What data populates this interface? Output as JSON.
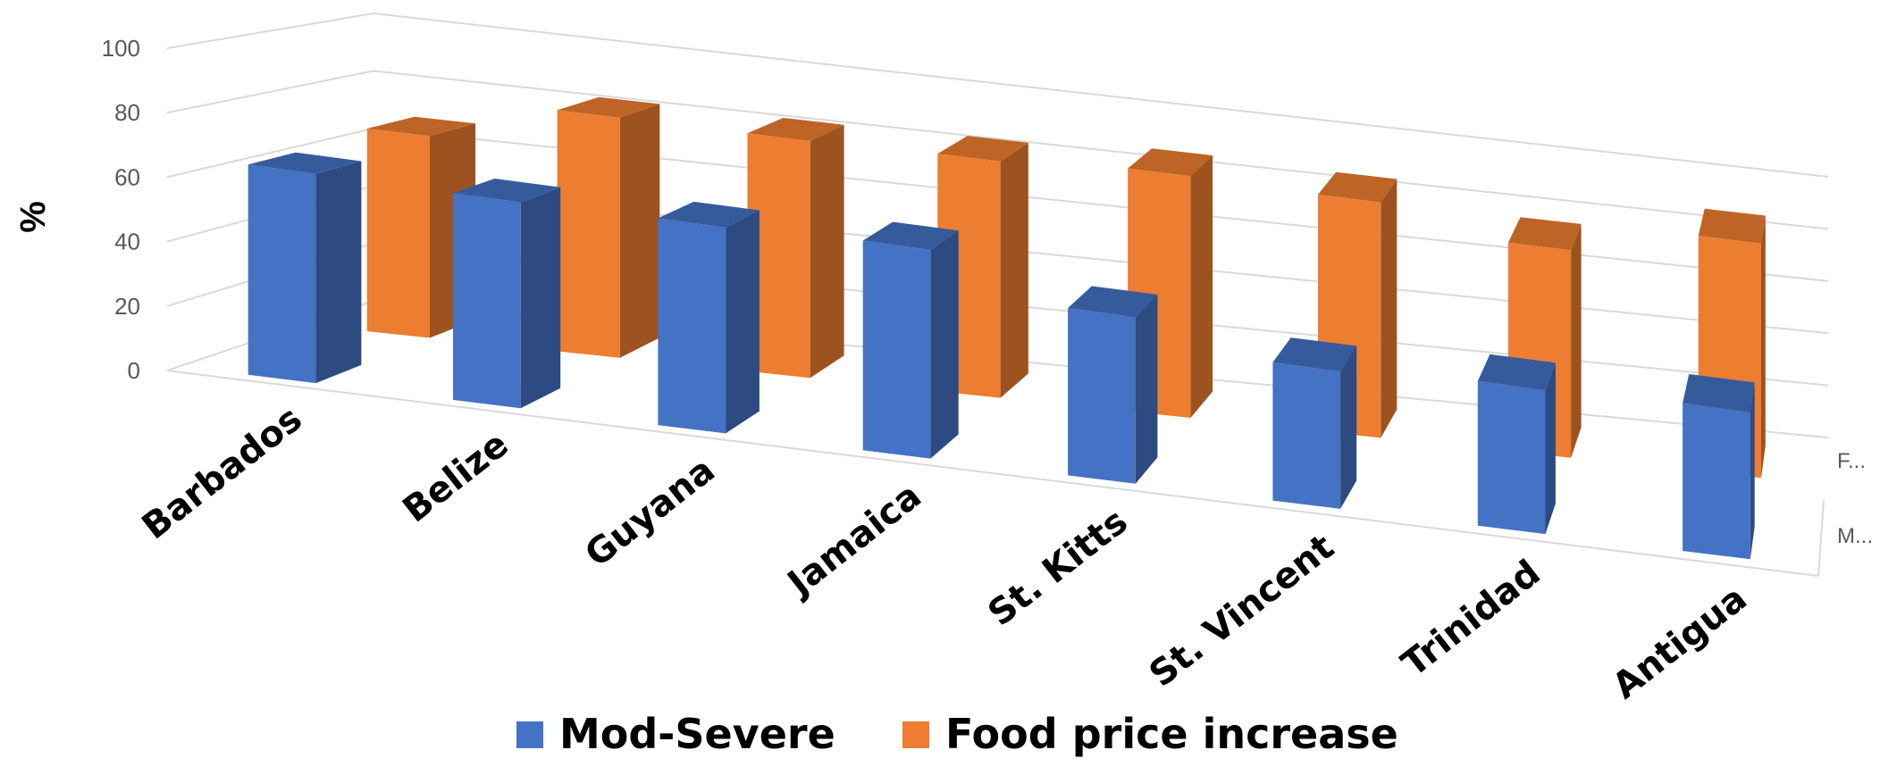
{
  "chart_data": {
    "type": "bar",
    "style": "3d-clustered-column",
    "categories": [
      "Barbados",
      "Belize",
      "Guyana",
      "Jamaica",
      "St. Kitts",
      "St. Vincent",
      "Trinidad",
      "Antigua"
    ],
    "series": [
      {
        "name": "Mod-Severe",
        "values": [
          66,
          66,
          67,
          69,
          56,
          47,
          50,
          52
        ],
        "color": "#4472C4"
      },
      {
        "name": "Food price increase",
        "values": [
          68,
          82,
          82,
          83,
          86,
          85,
          76,
          87
        ],
        "color": "#ED7D31"
      }
    ],
    "depth_labels": [
      "F...",
      "M..."
    ],
    "xlabel": "",
    "ylabel": "%",
    "ylim": [
      0,
      100
    ],
    "yticks": [
      0,
      20,
      40,
      60,
      80,
      100
    ],
    "grid": true,
    "legend": {
      "position": "bottom",
      "labels": [
        "Mod-Severe",
        "Food price increase"
      ]
    }
  }
}
